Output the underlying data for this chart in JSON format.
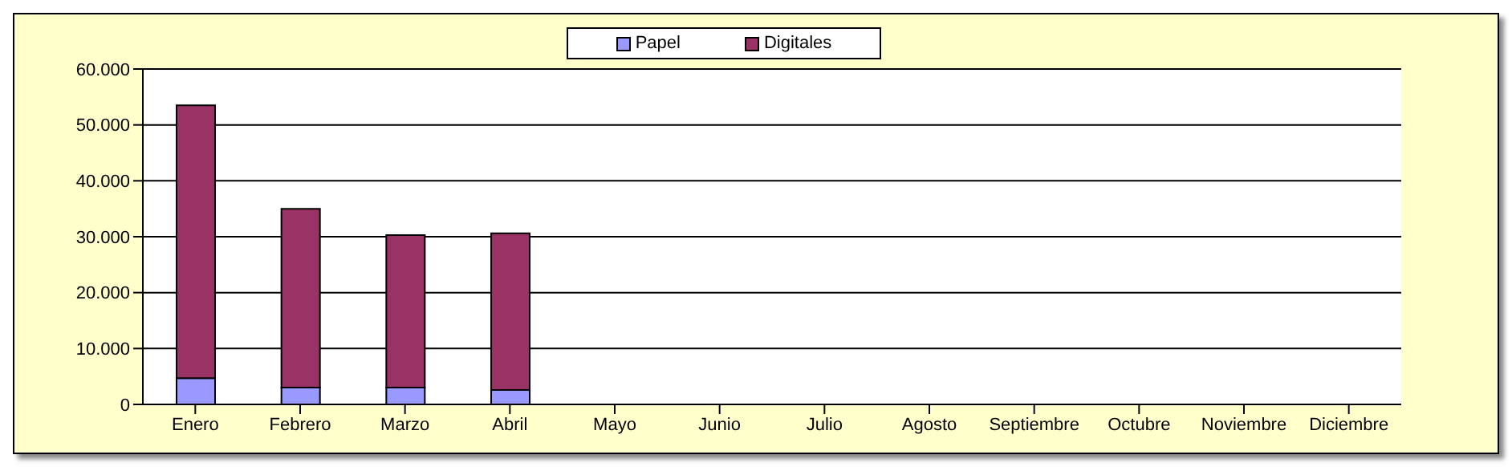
{
  "chart_data": {
    "type": "bar",
    "stacked": true,
    "categories": [
      "Enero",
      "Febrero",
      "Marzo",
      "Abril",
      "Mayo",
      "Junio",
      "Julio",
      "Agosto",
      "Septiembre",
      "Octubre",
      "Noviembre",
      "Diciembre"
    ],
    "series": [
      {
        "name": "Papel",
        "color": "#9999ff",
        "values": [
          4700,
          3000,
          3000,
          2600,
          0,
          0,
          0,
          0,
          0,
          0,
          0,
          0
        ]
      },
      {
        "name": "Digitales",
        "color": "#993366",
        "values": [
          48800,
          32000,
          27300,
          28000,
          0,
          0,
          0,
          0,
          0,
          0,
          0,
          0
        ]
      }
    ],
    "ylim": [
      0,
      60000
    ],
    "yticks": [
      {
        "value": 0,
        "label": "0"
      },
      {
        "value": 10000,
        "label": "10.000"
      },
      {
        "value": 20000,
        "label": "20.000"
      },
      {
        "value": 30000,
        "label": "30.000"
      },
      {
        "value": 40000,
        "label": "40.000"
      },
      {
        "value": 50000,
        "label": "50.000"
      },
      {
        "value": 60000,
        "label": "60.000"
      }
    ],
    "grid": "y",
    "legend": "top"
  }
}
